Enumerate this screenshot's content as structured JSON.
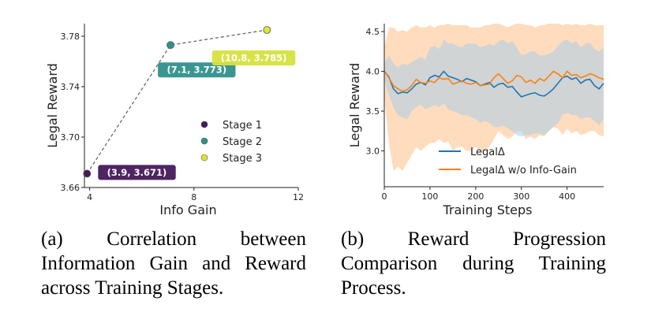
{
  "chart_data": [
    {
      "type": "scatter",
      "xlabel": "Info Gain",
      "ylabel": "Legal Reward",
      "xlim": [
        3.8,
        12
      ],
      "ylim": [
        3.66,
        3.79
      ],
      "xticks": [
        4,
        8,
        12
      ],
      "yticks": [
        3.66,
        3.7,
        3.74,
        3.78
      ],
      "ytick_labels": [
        "3.66",
        "3.70",
        "3.74",
        "3.78"
      ],
      "grid": false,
      "legend_placement": "center-right",
      "connector_line": "dashed",
      "points": [
        {
          "name": "Stage 1",
          "x": 3.9,
          "y": 3.671,
          "label": "(3.9, 3.671)",
          "color": "#46185a",
          "label_bg": "#46185a",
          "label_fg": "#ffffff"
        },
        {
          "name": "Stage 2",
          "x": 7.1,
          "y": 3.773,
          "label": "(7.1, 3.773)",
          "color": "#30908c",
          "label_bg": "#30908c",
          "label_fg": "#ffffff"
        },
        {
          "name": "Stage 3",
          "x": 10.8,
          "y": 3.785,
          "label": "(10.8, 3.785)",
          "color": "#dbe43c",
          "label_bg": "#d6e23f",
          "label_fg": "#ffffff"
        }
      ]
    },
    {
      "type": "line",
      "xlabel": "Training Steps",
      "ylabel": "Legal Reward",
      "xlim": [
        0,
        480
      ],
      "ylim": [
        2.55,
        4.6
      ],
      "xticks": [
        0,
        100,
        200,
        300,
        400
      ],
      "yticks": [
        3.0,
        3.5,
        4.0,
        4.5
      ],
      "ytick_labels": [
        "3.0",
        "3.5",
        "4.0",
        "4.5"
      ],
      "grid": false,
      "legend_placement": "bottom-center",
      "shaded_band": true,
      "series": [
        {
          "name": "LegalΔ",
          "color": "#1f77b4",
          "x": [
            0,
            10,
            20,
            30,
            40,
            50,
            60,
            70,
            80,
            90,
            100,
            110,
            120,
            130,
            140,
            150,
            160,
            170,
            180,
            190,
            200,
            210,
            220,
            230,
            240,
            250,
            260,
            270,
            280,
            290,
            300,
            310,
            320,
            330,
            340,
            350,
            360,
            370,
            380,
            390,
            400,
            410,
            420,
            430,
            440,
            450,
            460,
            470,
            480
          ],
          "y": [
            4.0,
            3.93,
            3.78,
            3.72,
            3.74,
            3.73,
            3.78,
            3.84,
            3.86,
            3.83,
            3.92,
            3.95,
            3.93,
            4.0,
            3.94,
            3.92,
            3.9,
            3.87,
            3.91,
            3.89,
            3.87,
            3.82,
            3.84,
            3.86,
            3.8,
            3.84,
            3.85,
            3.8,
            3.81,
            3.74,
            3.68,
            3.7,
            3.72,
            3.73,
            3.7,
            3.69,
            3.73,
            3.78,
            3.85,
            3.92,
            3.94,
            3.9,
            3.92,
            3.85,
            3.89,
            3.9,
            3.82,
            3.78,
            3.85
          ],
          "lower": [
            3.9,
            3.7,
            3.55,
            3.45,
            3.42,
            3.4,
            3.5,
            3.55,
            3.58,
            3.52,
            3.55,
            3.58,
            3.55,
            3.6,
            3.52,
            3.5,
            3.48,
            3.45,
            3.45,
            3.42,
            3.4,
            3.35,
            3.38,
            3.35,
            3.3,
            3.3,
            3.32,
            3.28,
            3.25,
            3.2,
            3.18,
            3.2,
            3.2,
            3.22,
            3.22,
            3.2,
            3.25,
            3.3,
            3.35,
            3.45,
            3.48,
            3.45,
            3.45,
            3.4,
            3.42,
            3.42,
            3.38,
            3.32,
            3.4
          ],
          "upper": [
            4.1,
            4.2,
            4.1,
            4.05,
            4.1,
            4.08,
            4.12,
            4.15,
            4.18,
            4.15,
            4.3,
            4.32,
            4.28,
            4.4,
            4.35,
            4.35,
            4.32,
            4.3,
            4.35,
            4.35,
            4.35,
            4.3,
            4.32,
            4.35,
            4.32,
            4.38,
            4.4,
            4.35,
            4.38,
            4.3,
            4.2,
            4.22,
            4.25,
            4.25,
            4.2,
            4.2,
            4.22,
            4.25,
            4.32,
            4.38,
            4.4,
            4.35,
            4.38,
            4.3,
            4.35,
            4.36,
            4.28,
            4.25,
            4.3
          ]
        },
        {
          "name": "LegalΔ w/o Info-Gain",
          "color": "#ff7f0e",
          "x": [
            0,
            10,
            20,
            30,
            40,
            50,
            60,
            70,
            80,
            90,
            100,
            110,
            120,
            130,
            140,
            150,
            160,
            170,
            180,
            190,
            200,
            210,
            220,
            230,
            240,
            250,
            260,
            270,
            280,
            290,
            300,
            310,
            320,
            330,
            340,
            350,
            360,
            370,
            380,
            390,
            400,
            410,
            420,
            430,
            440,
            450,
            460,
            470,
            480
          ],
          "y": [
            4.0,
            3.92,
            3.82,
            3.78,
            3.75,
            3.77,
            3.82,
            3.9,
            3.86,
            3.85,
            3.88,
            3.86,
            3.92,
            3.9,
            3.91,
            3.84,
            3.86,
            3.88,
            3.85,
            3.84,
            3.86,
            3.82,
            3.83,
            3.84,
            3.92,
            3.97,
            3.91,
            3.85,
            3.88,
            3.95,
            3.93,
            3.86,
            3.89,
            3.85,
            3.91,
            3.88,
            3.94,
            4.0,
            3.97,
            3.92,
            4.0,
            3.95,
            3.96,
            3.92,
            3.94,
            3.97,
            3.95,
            3.92,
            3.9
          ],
          "lower": [
            3.7,
            3.1,
            2.75,
            2.8,
            2.75,
            2.85,
            2.95,
            3.05,
            3.0,
            3.05,
            3.1,
            3.1,
            3.15,
            3.1,
            3.12,
            3.0,
            3.05,
            3.05,
            3.0,
            3.0,
            3.05,
            3.0,
            3.0,
            3.05,
            3.15,
            3.25,
            3.2,
            3.15,
            3.18,
            3.25,
            3.25,
            3.15,
            3.18,
            3.15,
            3.2,
            3.18,
            3.25,
            3.3,
            3.28,
            3.2,
            3.28,
            3.22,
            3.25,
            3.2,
            3.22,
            3.25,
            3.25,
            3.2,
            3.18
          ],
          "upper": [
            4.3,
            4.55,
            4.55,
            4.5,
            4.52,
            4.5,
            4.55,
            4.58,
            4.55,
            4.55,
            4.58,
            4.55,
            4.58,
            4.58,
            4.6,
            4.58,
            4.58,
            4.58,
            4.58,
            4.55,
            4.55,
            4.55,
            4.58,
            4.58,
            4.6,
            4.6,
            4.58,
            4.55,
            4.58,
            4.6,
            4.6,
            4.58,
            4.58,
            4.55,
            4.58,
            4.58,
            4.6,
            4.6,
            4.6,
            4.58,
            4.6,
            4.58,
            4.6,
            4.58,
            4.58,
            4.6,
            4.58,
            4.58,
            4.58
          ]
        }
      ]
    }
  ],
  "captions": {
    "a": "(a) Correlation between Information Gain and Reward across Training Stages.",
    "b": "(b) Reward Progression Comparison during Training Process."
  }
}
